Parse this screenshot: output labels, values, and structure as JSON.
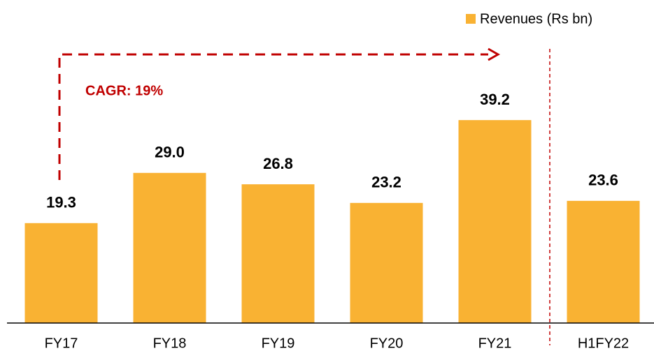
{
  "chart_data": {
    "type": "bar",
    "categories": [
      "FY17",
      "FY18",
      "FY19",
      "FY20",
      "FY21",
      "H1FY22"
    ],
    "series": [
      {
        "name": "Revenues (Rs bn)",
        "color": "#f9b233",
        "values": [
          19.3,
          29.0,
          26.8,
          23.2,
          39.2,
          23.6
        ],
        "value_labels": [
          "19.3",
          "29.0",
          "26.8",
          "23.2",
          "39.2",
          "23.6"
        ]
      }
    ],
    "annotation": "CAGR: 19%",
    "ylim": [
      0,
      50
    ],
    "legend": "top-right"
  }
}
